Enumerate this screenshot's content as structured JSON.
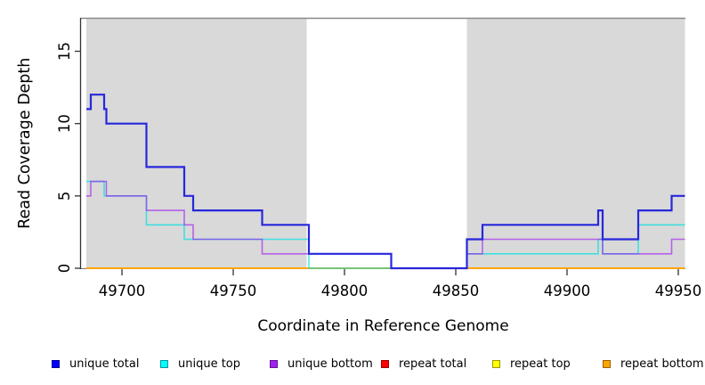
{
  "figure": {
    "x_axis_title": "Coordinate in Reference Genome",
    "y_axis_title": "Read Coverage Depth"
  },
  "chart_data": {
    "type": "line",
    "subtype": "step-coverage-plot",
    "title": "",
    "xlabel": "Coordinate in Reference Genome",
    "ylabel": "Read Coverage Depth",
    "xlim": [
      49681.6,
      49953.2
    ],
    "ylim": [
      0,
      17.28
    ],
    "xticks": [
      49700,
      49750,
      49800,
      49850,
      49900,
      49950
    ],
    "yticks": [
      0,
      5,
      10,
      15
    ],
    "grid": false,
    "legend_position": "bottom",
    "plot_background": "#ffffff",
    "shaded_regions": {
      "color": "#d9d9d9",
      "border_top_color": "#8a8a8a",
      "ranges": [
        [
          49684,
          49783
        ],
        [
          49855,
          49953
        ]
      ]
    },
    "x_end": 49953,
    "series": [
      {
        "name": "unique total",
        "color": "#0000ff",
        "line_color": "#2727dc",
        "legend_border": "#000099",
        "width": 2.2,
        "opacity": 1,
        "steps": [
          [
            49684,
            11
          ],
          [
            49686,
            12
          ],
          [
            49692,
            11
          ],
          [
            49693,
            10
          ],
          [
            49711,
            7
          ],
          [
            49728,
            5
          ],
          [
            49732,
            4
          ],
          [
            49763,
            3
          ],
          [
            49784,
            1
          ],
          [
            49821,
            0
          ],
          [
            49855,
            2
          ],
          [
            49862,
            3
          ],
          [
            49914,
            4
          ],
          [
            49916,
            2
          ],
          [
            49932,
            4
          ],
          [
            49947,
            5
          ]
        ]
      },
      {
        "name": "unique top",
        "color": "#00ffff",
        "line_color": "#00e0e0",
        "legend_border": "#009999",
        "width": 1.6,
        "opacity": 0.7,
        "steps": [
          [
            49684,
            6
          ],
          [
            49692,
            5
          ],
          [
            49711,
            3
          ],
          [
            49728,
            2
          ],
          [
            49784,
            0
          ],
          [
            49855,
            1
          ],
          [
            49914,
            2
          ],
          [
            49916,
            1
          ],
          [
            49932,
            3
          ]
        ]
      },
      {
        "name": "unique bottom",
        "color": "#a020f0",
        "line_color": "#a020f0",
        "legend_border": "#601490",
        "width": 1.6,
        "opacity": 0.65,
        "steps": [
          [
            49684,
            5
          ],
          [
            49686,
            6
          ],
          [
            49693,
            5
          ],
          [
            49711,
            4
          ],
          [
            49728,
            3
          ],
          [
            49732,
            2
          ],
          [
            49763,
            1
          ],
          [
            49821,
            0
          ],
          [
            49855,
            1
          ],
          [
            49862,
            2
          ],
          [
            49916,
            1
          ],
          [
            49947,
            2
          ]
        ]
      },
      {
        "name": "repeat total",
        "color": "#ff0000",
        "line_color": "#ff0000",
        "legend_border": "#990000",
        "width": 1.6,
        "opacity": 1,
        "steps": [
          [
            49684,
            0
          ]
        ]
      },
      {
        "name": "repeat top",
        "color": "#ffff00",
        "line_color": "#ffff00",
        "legend_border": "#999900",
        "width": 1.6,
        "opacity": 1,
        "steps": [
          [
            49684,
            0
          ]
        ]
      },
      {
        "name": "repeat bottom",
        "color": "#ffa500",
        "line_color": "#ffa500",
        "legend_border": "#996300",
        "width": 2,
        "opacity": 1,
        "steps": [
          [
            49684,
            0
          ]
        ]
      }
    ],
    "draw_order": [
      "repeat total",
      "repeat top",
      "repeat bottom",
      "unique top",
      "unique bottom",
      "unique total"
    ]
  }
}
